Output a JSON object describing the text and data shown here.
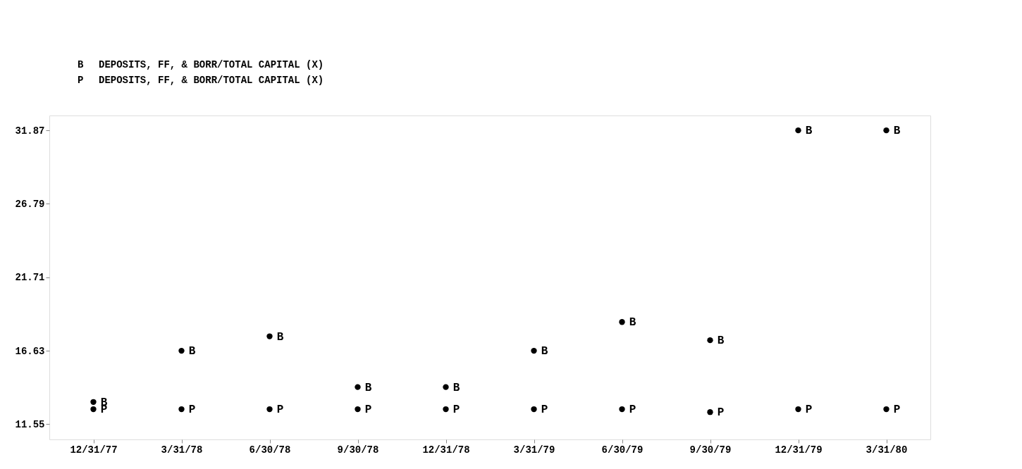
{
  "chart_data": {
    "type": "scatter",
    "categories": [
      "12/31/77",
      "3/31/78",
      "6/30/78",
      "9/30/78",
      "12/31/78",
      "3/31/79",
      "6/30/79",
      "9/30/79",
      "12/31/79",
      "3/31/80"
    ],
    "series": [
      {
        "name": "B",
        "color": "#000000",
        "values": [
          13.09,
          16.63,
          17.63,
          14.12,
          14.12,
          16.63,
          18.62,
          17.36,
          31.87,
          31.87
        ]
      },
      {
        "name": "P",
        "color": "#000000",
        "values": [
          12.59,
          12.59,
          12.59,
          12.59,
          12.59,
          12.59,
          12.59,
          12.39,
          12.59,
          12.59
        ]
      }
    ],
    "annotations": [
      "DEPOSITS, FF, & BORR/TOTAL CAPITAL (X)",
      "DEPOSITS, FF, & BORR/TOTAL CAPITAL (X)"
    ],
    "ylim": [
      10.5,
      32.9
    ],
    "yticks": [
      11.55,
      16.63,
      21.71,
      26.79,
      31.87
    ],
    "grid": false,
    "marker": "circle"
  }
}
